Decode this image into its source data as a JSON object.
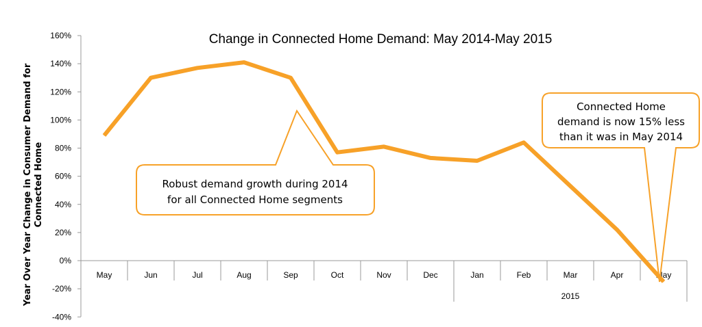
{
  "chart_data": {
    "type": "line",
    "title": "Change in Connected Home Demand: May 2014-May 2015",
    "ylabel": [
      "Year Over Year Change in Consumer Demand for",
      "Connected Home"
    ],
    "categories": [
      "May",
      "Jun",
      "Jul",
      "Aug",
      "Sep",
      "Oct",
      "Nov",
      "Dec",
      "Jan",
      "Feb",
      "Mar",
      "Apr",
      "May"
    ],
    "year_group": {
      "label": "2015",
      "from_index": 8,
      "to_index": 12
    },
    "ylim": [
      -40,
      160
    ],
    "yticks": [
      -40,
      -20,
      0,
      20,
      40,
      60,
      80,
      100,
      120,
      140,
      160
    ],
    "ytick_labels": [
      "-40%",
      "-20%",
      "0%",
      "20%",
      "40%",
      "60%",
      "80%",
      "100%",
      "120%",
      "140%",
      "160%"
    ],
    "series": [
      {
        "values": [
          89,
          130,
          137,
          141,
          130,
          77,
          81,
          73,
          71,
          84,
          53,
          22,
          -15
        ]
      }
    ],
    "line_color": "#F7A128",
    "callout_color": "#F7A128",
    "grid": false,
    "annotations": [
      {
        "id": "growth",
        "lines": [
          "Robust demand growth during 2014",
          "for all Connected Home segments"
        ],
        "anchor_index": 4
      },
      {
        "id": "decline",
        "lines": [
          "Connected Home",
          "demand is now 15% less",
          "than it was in May 2014"
        ],
        "anchor_index": 12
      }
    ]
  }
}
